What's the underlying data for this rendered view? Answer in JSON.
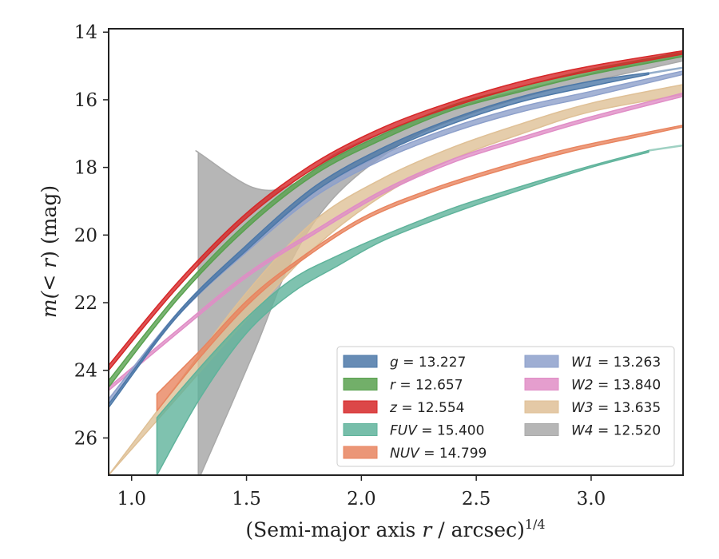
{
  "chart_data": {
    "type": "area",
    "xlabel_main": "(Semi-major axis ",
    "xlabel_var": "r",
    "xlabel_unit": " / arcsec)",
    "xlabel_exp": "1/4",
    "ylabel_main": "m(< r) (mag)",
    "ylabel_func": "m(",
    "ylabel_lt": "< ",
    "ylabel_var": "r",
    "ylabel_close": ") (mag)",
    "xlim": [
      0.9,
      3.4
    ],
    "ylim": [
      27.1,
      13.9
    ],
    "y_inverted": true,
    "xticks": [
      1.0,
      1.5,
      2.0,
      2.5,
      3.0
    ],
    "xtick_labels": [
      "1.0",
      "1.5",
      "2.0",
      "2.5",
      "3.0"
    ],
    "yticks": [
      14,
      16,
      18,
      20,
      22,
      24,
      26
    ],
    "ytick_labels": [
      "14",
      "16",
      "18",
      "20",
      "22",
      "24",
      "26"
    ],
    "grid": false,
    "legend_position": "lower-right",
    "series": [
      {
        "name": "g",
        "total": "13.227",
        "color": "#4c78a8",
        "x": [
          0.9,
          1.2,
          1.5,
          1.8,
          2.1,
          2.4,
          2.7,
          3.0,
          3.25
        ],
        "band_upper": [
          25.1,
          22.4,
          20.45,
          18.7,
          17.55,
          16.7,
          16.05,
          15.6,
          15.25
        ],
        "band_lower": [
          25.0,
          22.3,
          20.3,
          18.55,
          17.4,
          16.55,
          15.9,
          15.45,
          15.2
        ],
        "ext_x": [
          3.25,
          3.4
        ],
        "ext_y": [
          15.22,
          15.05
        ]
      },
      {
        "name": "r",
        "total": "12.657",
        "color": "#59a14f",
        "x": [
          0.9,
          1.2,
          1.5,
          1.8,
          2.1,
          2.4,
          2.7,
          3.0,
          3.4
        ],
        "band_upper": [
          24.5,
          21.9,
          19.8,
          18.2,
          17.15,
          16.3,
          15.75,
          15.25,
          14.72
        ],
        "band_lower": [
          24.3,
          21.75,
          19.65,
          18.05,
          17.0,
          16.15,
          15.6,
          15.1,
          14.6
        ],
        "ext_x": [],
        "ext_y": []
      },
      {
        "name": "z",
        "total": "12.554",
        "color": "#d62728",
        "x": [
          0.9,
          1.2,
          1.5,
          1.8,
          2.1,
          2.4,
          2.7,
          3.0,
          3.4
        ],
        "band_upper": [
          24.0,
          21.55,
          19.5,
          18.0,
          16.95,
          16.2,
          15.6,
          15.15,
          14.65
        ],
        "band_lower": [
          23.85,
          21.4,
          19.35,
          17.85,
          16.8,
          16.05,
          15.45,
          15.0,
          14.55
        ],
        "ext_x": [],
        "ext_y": []
      },
      {
        "name": "FUV",
        "total": "15.400",
        "color": "#5fb39b",
        "x": [
          1.11,
          1.3,
          1.5,
          1.7,
          1.9,
          2.1,
          2.4,
          2.7,
          3.0,
          3.25
        ],
        "band_upper": [
          27.1,
          24.8,
          22.9,
          21.7,
          20.9,
          20.15,
          19.35,
          18.65,
          18.0,
          17.55
        ],
        "band_lower": [
          25.4,
          23.9,
          22.45,
          21.3,
          20.6,
          20.0,
          19.2,
          18.55,
          17.95,
          17.5
        ],
        "ext_x": [
          3.25,
          3.4
        ],
        "ext_y": [
          17.5,
          17.35
        ]
      },
      {
        "name": "NUV",
        "total": "14.799",
        "color": "#e8845f",
        "x": [
          1.11,
          1.3,
          1.5,
          1.7,
          2.0,
          2.3,
          2.6,
          2.9,
          3.2,
          3.4
        ],
        "band_upper": [
          25.2,
          23.6,
          22.1,
          20.95,
          19.6,
          18.75,
          18.1,
          17.55,
          17.1,
          16.8
        ],
        "band_lower": [
          24.7,
          23.4,
          21.95,
          20.85,
          19.5,
          18.65,
          18.0,
          17.45,
          17.02,
          16.75
        ],
        "ext_x": [],
        "ext_y": []
      },
      {
        "name": "W1",
        "total": "13.263",
        "color": "#8da0cb",
        "x": [
          0.9,
          1.2,
          1.5,
          1.8,
          2.1,
          2.4,
          2.7,
          3.0,
          3.4
        ],
        "band_upper": [
          25.0,
          22.4,
          20.5,
          18.85,
          17.75,
          16.95,
          16.35,
          15.9,
          15.25
        ],
        "band_lower": [
          24.85,
          22.3,
          20.35,
          18.7,
          17.6,
          16.8,
          16.2,
          15.75,
          15.15
        ],
        "ext_x": [],
        "ext_y": []
      },
      {
        "name": "W2",
        "total": "13.840",
        "color": "#e08dc6",
        "x": [
          0.9,
          1.2,
          1.5,
          1.8,
          2.1,
          2.4,
          2.7,
          3.0,
          3.4
        ],
        "band_upper": [
          24.6,
          22.9,
          21.25,
          19.95,
          18.75,
          17.85,
          17.2,
          16.6,
          15.9
        ],
        "band_lower": [
          24.5,
          22.8,
          21.15,
          19.85,
          18.65,
          17.75,
          17.1,
          16.5,
          15.8
        ],
        "ext_x": [],
        "ext_y": []
      },
      {
        "name": "W3",
        "total": "13.635",
        "color": "#dfc096",
        "x": [
          0.9,
          1.2,
          1.5,
          1.8,
          2.1,
          2.4,
          2.7,
          3.0,
          3.4
        ],
        "band_upper": [
          27.1,
          24.8,
          22.5,
          20.35,
          18.8,
          17.75,
          17.0,
          16.35,
          15.85
        ],
        "band_lower": [
          27.1,
          24.4,
          21.7,
          19.55,
          18.3,
          17.4,
          16.7,
          16.1,
          15.55
        ],
        "ext_x": [],
        "ext_y": []
      },
      {
        "name": "W4",
        "total": "12.520",
        "color": "#a9a9a9",
        "x": [
          1.29,
          1.3,
          1.53,
          1.7,
          1.9,
          2.2,
          2.5,
          2.8,
          3.1,
          3.4
        ],
        "band_upper": [
          17.55,
          17.6,
          18.6,
          18.5,
          17.55,
          16.7,
          16.05,
          15.55,
          15.05,
          14.55
        ],
        "band_lower": [
          27.1,
          27.1,
          23.5,
          20.7,
          18.75,
          17.2,
          16.35,
          15.75,
          15.3,
          14.85
        ],
        "ext_x": [],
        "ext_y": []
      }
    ]
  }
}
